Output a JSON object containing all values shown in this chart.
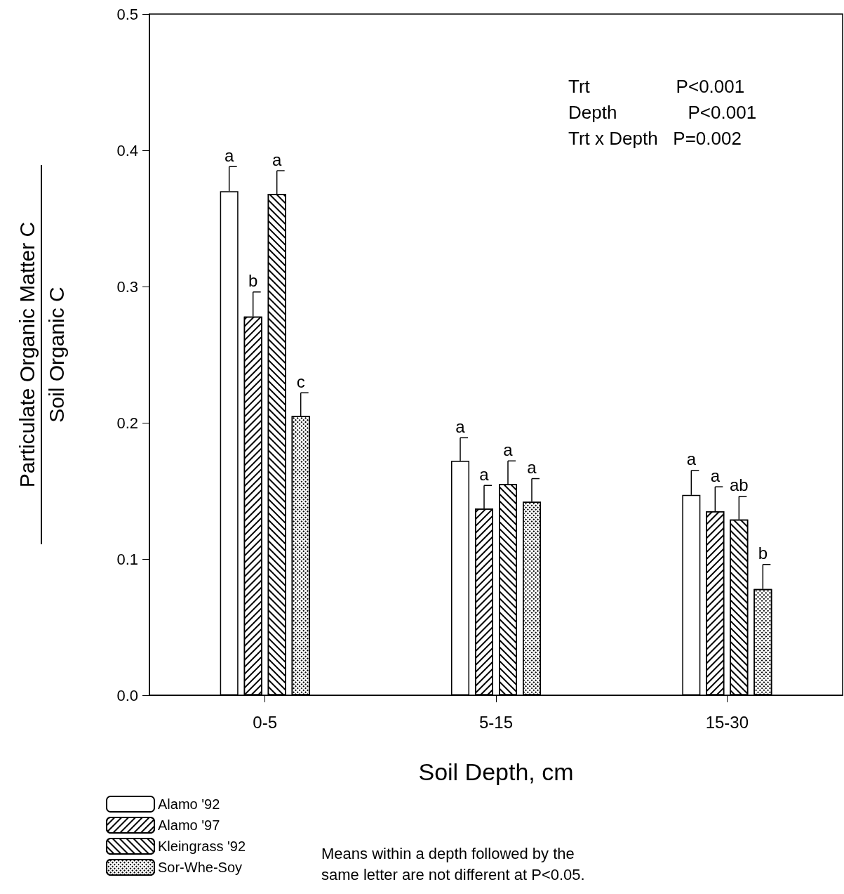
{
  "chart_data": {
    "type": "bar",
    "xlabel": "Soil Depth, cm",
    "ylabel": "Particulate Organic Matter C\nSoil Organic C",
    "categories": [
      "0-5",
      "5-15",
      "15-30"
    ],
    "series": [
      {
        "name": "Alamo '92",
        "color": "#ffffff",
        "values": [
          0.37,
          0.172,
          0.147
        ],
        "errors": [
          [
            0.37,
            0.388
          ],
          [
            0.172,
            0.189
          ],
          [
            0.147,
            0.165
          ]
        ],
        "value_labels": [
          "a",
          "a",
          "a"
        ]
      },
      {
        "name": "Alamo '97",
        "color": "#ffffff",
        "values": [
          0.278,
          0.137,
          0.135
        ],
        "errors": [
          [
            0.278,
            0.296
          ],
          [
            0.137,
            0.154
          ],
          [
            0.135,
            0.153
          ]
        ],
        "value_labels": [
          "b",
          "a",
          "a"
        ]
      },
      {
        "name": "Kleingrass '92",
        "color": "#ffffff",
        "values": [
          0.368,
          0.155,
          0.129
        ],
        "errors": [
          [
            0.368,
            0.385
          ],
          [
            0.155,
            0.172
          ],
          [
            0.129,
            0.146
          ]
        ],
        "value_labels": [
          "a",
          "a",
          "ab"
        ]
      },
      {
        "name": "Sor-Whe-Soy",
        "color": "#ffffff",
        "values": [
          0.205,
          0.142,
          0.078
        ],
        "errors": [
          [
            0.205,
            0.222
          ],
          [
            0.142,
            0.159
          ],
          [
            0.078,
            0.096
          ]
        ],
        "value_labels": [
          "c",
          "a",
          "b"
        ]
      }
    ],
    "ylim": [
      0,
      0.5
    ],
    "yticks": [
      {
        "value": 0,
        "label": "0.0"
      },
      {
        "value": 0.1,
        "label": "0.1"
      },
      {
        "value": 0.2,
        "label": "0.2"
      },
      {
        "value": 0.3,
        "label": "0.3"
      },
      {
        "value": 0.4,
        "label": "0.4"
      },
      {
        "value": 0.5,
        "label": "0.5"
      }
    ],
    "grid": false,
    "legend": "bottom left",
    "annotations": [
      "Trt                 P<0.001",
      "Depth              P<0.001",
      "Trt x Depth   P=0.002",
      "Means within a depth followed by the same letter are not different at P<0.05."
    ]
  }
}
